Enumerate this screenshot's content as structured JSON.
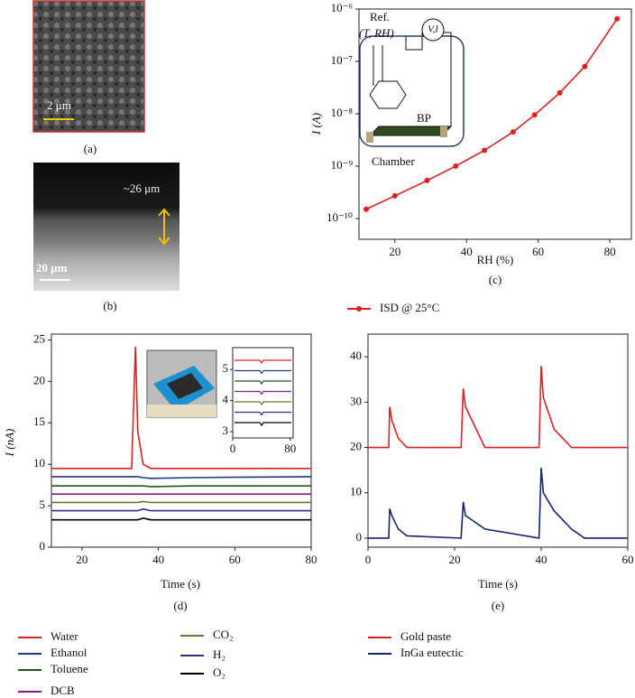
{
  "images": [
    {
      "caption": "(a)",
      "scale_label": "2 μm"
    },
    {
      "caption": "(b)",
      "thickness_label": "~26 μm",
      "scale_label": "20 μm"
    }
  ],
  "chart_data": [
    {
      "type": "line",
      "log_y": true,
      "caption": "(c)",
      "xlabel": "RH (%)",
      "ylabel": "I (A)",
      "inset_labels": [
        "Ref.",
        "(T, RH)",
        "V,I",
        "BP",
        "Chamber"
      ],
      "x": [
        12,
        20,
        29,
        37,
        45,
        53,
        59,
        66,
        73,
        82
      ],
      "series": [
        {
          "name": "ISD @ 25°C",
          "color": "#e02020",
          "markers": true,
          "values": [
            1.5e-10,
            2.7e-10,
            5.3e-10,
            1e-09,
            2e-09,
            4.5e-09,
            9.5e-09,
            2.5e-08,
            8e-08,
            6.5e-07
          ]
        }
      ],
      "xlim": [
        10,
        86
      ],
      "xticks": [
        20,
        40,
        60,
        80
      ],
      "ylim": [
        4e-11,
        1e-06
      ],
      "yticks": [
        {
          "value": 1e-10,
          "label": "10⁻¹⁰"
        },
        {
          "value": 1e-09,
          "label": "10⁻⁹"
        },
        {
          "value": 1e-08,
          "label": "10⁻⁸"
        },
        {
          "value": 1e-07,
          "label": "10⁻⁷"
        },
        {
          "value": 1e-06,
          "label": "10⁻⁶"
        }
      ],
      "legend": "below"
    },
    {
      "type": "line",
      "caption": "(d)",
      "xlabel": "Time (s)",
      "ylabel": "I (nA)",
      "x": [
        12,
        33,
        34,
        34.6,
        36,
        38,
        50,
        80
      ],
      "series": [
        {
          "name": "Water",
          "color": "#e02020",
          "values": [
            9.5,
            9.5,
            24.2,
            14,
            10,
            9.5,
            9.5,
            9.5
          ]
        },
        {
          "name": "Ethanol",
          "color": "#1f3a8a",
          "values": [
            8.5,
            8.5,
            8.5,
            8.5,
            8.4,
            8.3,
            8.4,
            8.5
          ]
        },
        {
          "name": "Toluene",
          "color": "#1d5a1d",
          "values": [
            7.4,
            7.4,
            7.4,
            7.4,
            7.4,
            7.3,
            7.4,
            7.4
          ]
        },
        {
          "name": "DCB",
          "color": "#8b1a8b",
          "values": [
            6.4,
            6.4,
            6.4,
            6.4,
            6.4,
            6.4,
            6.4,
            6.4
          ]
        },
        {
          "name": "CO₂",
          "color": "#707033",
          "values": [
            5.4,
            5.4,
            5.4,
            5.4,
            5.5,
            5.4,
            5.4,
            5.4
          ]
        },
        {
          "name": "H₂",
          "color": "#3a2a8a",
          "values": [
            4.4,
            4.4,
            4.4,
            4.4,
            4.6,
            4.4,
            4.4,
            4.4
          ]
        },
        {
          "name": "O₂",
          "color": "#000000",
          "values": [
            3.3,
            3.3,
            3.3,
            3.3,
            3.5,
            3.3,
            3.3,
            3.3
          ]
        }
      ],
      "xlim": [
        12,
        80
      ],
      "xticks": [
        20,
        40,
        60,
        80
      ],
      "ylim": [
        0,
        25.7
      ],
      "yticks": [
        0,
        5,
        10,
        15,
        20,
        25
      ],
      "inset": {
        "xlim": [
          0,
          84
        ],
        "ylim": [
          2.8,
          5.7
        ],
        "xticks": [
          0,
          80
        ],
        "yticks": [
          3,
          4,
          5
        ]
      },
      "legend": "below"
    },
    {
      "type": "line",
      "caption": "(e)",
      "xlabel": "Time (s)",
      "x": [
        0,
        4.8,
        5,
        5.5,
        7,
        9,
        21.5,
        22,
        22.5,
        24,
        27,
        39.5,
        40,
        40.5,
        43,
        47,
        50,
        60
      ],
      "series": [
        {
          "name": "Gold paste",
          "color": "#e02020",
          "values": [
            20,
            20,
            29,
            26,
            22,
            20,
            20,
            33,
            29,
            26,
            20,
            20,
            38,
            31,
            24,
            20,
            20,
            20
          ]
        },
        {
          "name": "InGa eutectic",
          "color": "#14237a",
          "values": [
            0,
            0,
            6.5,
            5,
            2,
            0.5,
            0,
            8,
            5,
            4,
            2,
            0,
            15.5,
            10,
            6,
            2,
            0,
            0
          ]
        }
      ],
      "xlim": [
        0,
        60
      ],
      "xticks": [
        0,
        20,
        40,
        60
      ],
      "ylim": [
        -2,
        45
      ],
      "yticks": [
        0,
        10,
        20,
        30,
        40
      ],
      "legend": "below"
    }
  ]
}
